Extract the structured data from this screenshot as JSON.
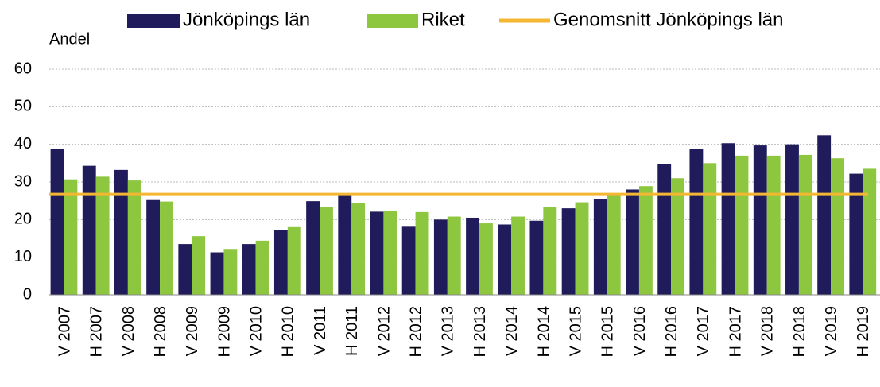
{
  "chart_data": {
    "type": "bar",
    "ylabel": "Andel",
    "categories": [
      "V 2007",
      "H 2007",
      "V 2008",
      "H 2008",
      "V 2009",
      "H 2009",
      "V 2010",
      "H 2010",
      "V 2011",
      "H 2011",
      "V 2012",
      "H 2012",
      "V 2013",
      "H 2013",
      "V 2014",
      "H 2014",
      "V 2015",
      "H 2015",
      "V 2016",
      "H 2016",
      "V 2017",
      "H 2017",
      "V 2018",
      "H 2018",
      "V 2019",
      "H 2019"
    ],
    "series": [
      {
        "name": "Jönköpings län",
        "color": "#201c5c",
        "values": [
          38.7,
          34.3,
          33.2,
          25.2,
          13.5,
          11.3,
          13.5,
          17.2,
          24.9,
          26.5,
          22.1,
          18.1,
          20.0,
          20.5,
          18.7,
          19.7,
          23.0,
          25.5,
          28.0,
          34.8,
          38.8,
          40.3,
          39.7,
          40.0,
          42.4,
          32.2
        ]
      },
      {
        "name": "Riket",
        "color": "#8dc63f",
        "values": [
          30.7,
          31.4,
          30.4,
          24.8,
          15.6,
          12.2,
          14.4,
          18.0,
          23.3,
          24.3,
          22.4,
          22.0,
          20.8,
          19.0,
          20.8,
          23.3,
          24.6,
          26.5,
          28.9,
          31.0,
          35.0,
          37.0,
          37.0,
          37.2,
          36.3,
          33.5
        ]
      }
    ],
    "average": {
      "name": "Genomsnitt Jönköpings län",
      "color": "#f5b731",
      "value": 26.7
    },
    "ylim": [
      0,
      60
    ],
    "yticks": [
      0,
      10,
      20,
      30,
      40,
      50,
      60
    ],
    "grid": true
  }
}
